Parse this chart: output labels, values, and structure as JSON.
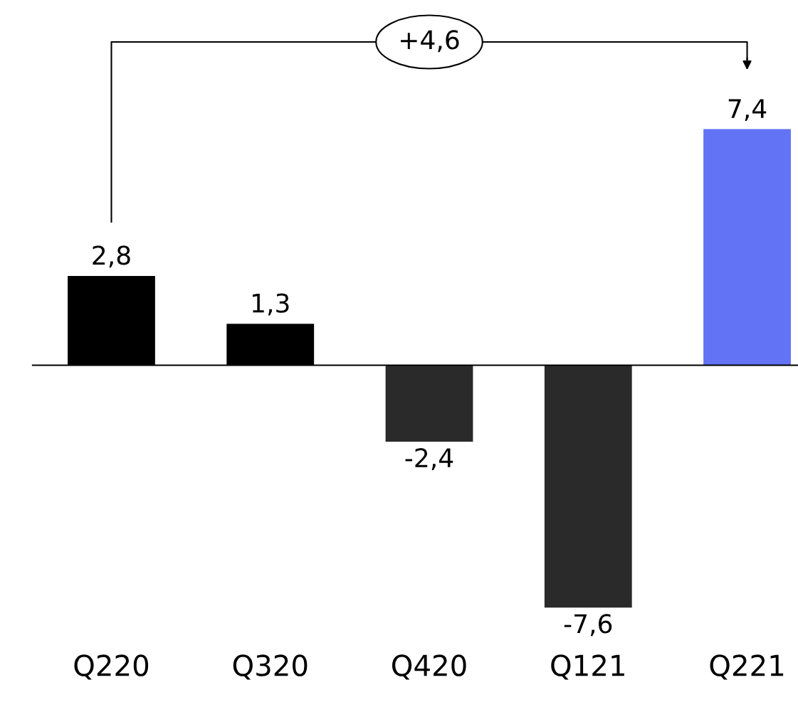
{
  "chart_data": {
    "type": "bar",
    "categories": [
      "Q220",
      "Q320",
      "Q420",
      "Q121",
      "Q221"
    ],
    "values": [
      2.8,
      1.3,
      -2.4,
      -7.6,
      7.4
    ],
    "colors": [
      "#000000",
      "#000000",
      "#2a2a2a",
      "#2a2a2a",
      "#6373f5"
    ],
    "value_labels": [
      "2,8",
      "1,3",
      "-2,4",
      "-7,6",
      "7,4"
    ],
    "annotations": [
      "+4,6"
    ],
    "grid": false,
    "legend": false
  }
}
